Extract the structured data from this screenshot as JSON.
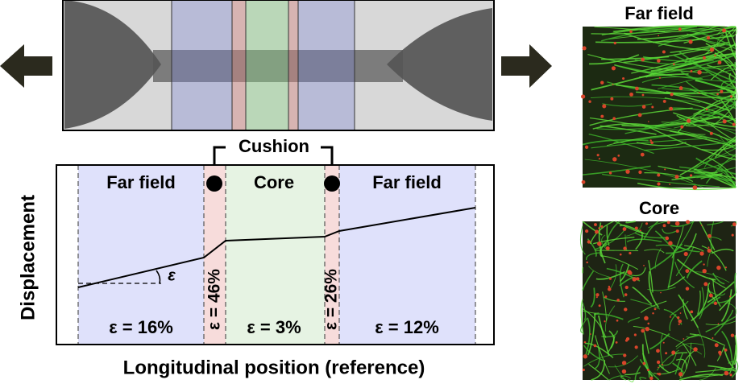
{
  "plot": {
    "y_label": "Displacement",
    "x_label": "Longitudinal position (reference)",
    "cushion_label": "Cushion",
    "angle_label": "ε",
    "regions": [
      {
        "label": "Far field",
        "strain": "ε = 16%"
      },
      {
        "label": "Core",
        "strain": "ε = 3%"
      },
      {
        "label": "Far field",
        "strain": "ε = 12%"
      }
    ],
    "cushion_strains": [
      "ε = 46%",
      "ε = 26%"
    ]
  },
  "micrographs": [
    {
      "title": "Far field"
    },
    {
      "title": "Core"
    }
  ]
}
